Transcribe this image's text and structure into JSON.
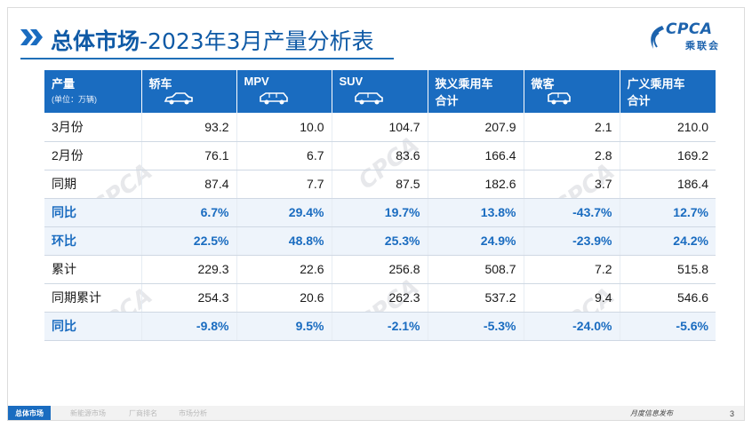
{
  "header": {
    "title_main": "总体市场",
    "title_sub": "-2023年3月产量分析表"
  },
  "logo": {
    "text": "CPCA",
    "cn": "乘联会",
    "small": "CPCA"
  },
  "table": {
    "columns": [
      {
        "label": "产量",
        "sub": "(单位：万辆)"
      },
      {
        "label": "轿车",
        "icon": "sedan-icon"
      },
      {
        "label": "MPV",
        "icon": "mpv-icon"
      },
      {
        "label": "SUV",
        "icon": "suv-icon"
      },
      {
        "label": "狭义乘用车",
        "label2": "合计"
      },
      {
        "label": "微客",
        "icon": "microvan-icon"
      },
      {
        "label": "广义乘用车",
        "label2": "合计"
      }
    ],
    "rows": [
      {
        "label": "3月份",
        "values": [
          "93.2",
          "10.0",
          "104.7",
          "207.9",
          "2.1",
          "210.0"
        ],
        "pct": false
      },
      {
        "label": "2月份",
        "values": [
          "76.1",
          "6.7",
          "83.6",
          "166.4",
          "2.8",
          "169.2"
        ],
        "pct": false
      },
      {
        "label": "同期",
        "values": [
          "87.4",
          "7.7",
          "87.5",
          "182.6",
          "3.7",
          "186.4"
        ],
        "pct": false
      },
      {
        "label": "同比",
        "values": [
          "6.7%",
          "29.4%",
          "19.7%",
          "13.8%",
          "-43.7%",
          "12.7%"
        ],
        "pct": true
      },
      {
        "label": "环比",
        "values": [
          "22.5%",
          "48.8%",
          "25.3%",
          "24.9%",
          "-23.9%",
          "24.2%"
        ],
        "pct": true
      },
      {
        "label": "累计",
        "values": [
          "229.3",
          "22.6",
          "256.8",
          "508.7",
          "7.2",
          "515.8"
        ],
        "pct": false
      },
      {
        "label": "同期累计",
        "values": [
          "254.3",
          "20.6",
          "262.3",
          "537.2",
          "9.4",
          "546.6"
        ],
        "pct": false
      },
      {
        "label": "同比",
        "values": [
          "-9.8%",
          "9.5%",
          "-2.1%",
          "-5.3%",
          "-24.0%",
          "-5.6%"
        ],
        "pct": true
      }
    ]
  },
  "watermark": {
    "text": "CPCA",
    "cn": "乘联会"
  },
  "footer": {
    "tabs": [
      "总体市场",
      "新能源市场",
      "厂商排名",
      "市场分析"
    ],
    "right_text": "月度信息发布",
    "page": "3"
  },
  "colors": {
    "primary": "#1a6cc0",
    "title": "#0f5aa6",
    "pct_row_bg": "#eef4fb"
  }
}
